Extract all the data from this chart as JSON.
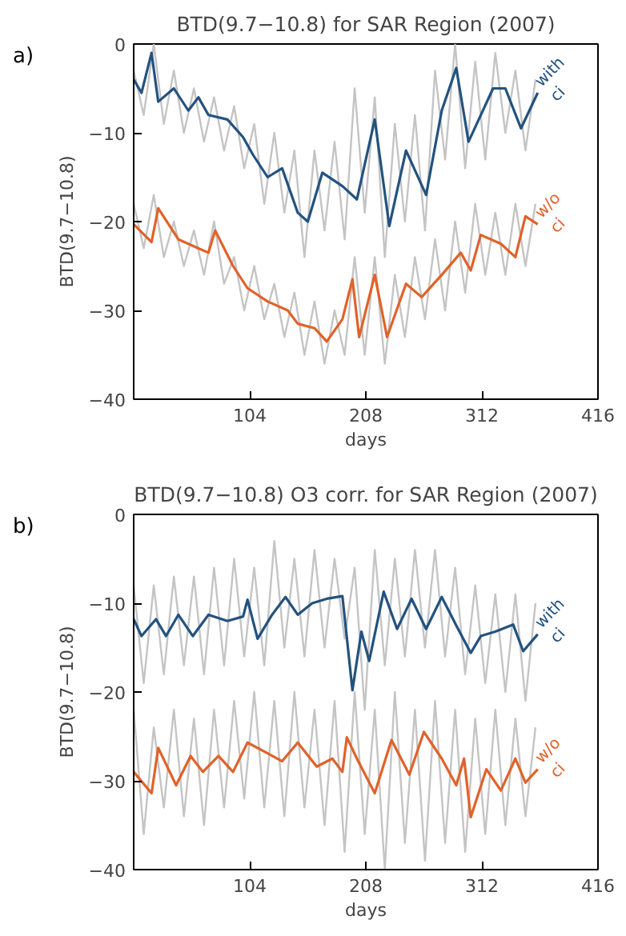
{
  "chart_data": [
    {
      "type": "line",
      "title": "BTD(9.7−10.8) for SAR Region (2007)",
      "xlabel": "days",
      "ylabel": "BTD(9.7−10.8)",
      "annotations": [
        "a)"
      ],
      "xlim": [
        0,
        416
      ],
      "xticks": [
        104,
        208,
        312,
        416
      ],
      "ylim": [
        -40,
        0
      ],
      "yticks": [
        -40,
        -30,
        -20,
        -10,
        0
      ],
      "series": [
        {
          "color": "#c4c4c4",
          "x": [
            0,
            9,
            18,
            27,
            36,
            45,
            54,
            63,
            72,
            81,
            90,
            99,
            108,
            117,
            126,
            135,
            144,
            153,
            162,
            171,
            180,
            189,
            198,
            207,
            216,
            225,
            234,
            243,
            252,
            261,
            270,
            279,
            288,
            297,
            306,
            315,
            324,
            333,
            342,
            351,
            360
          ],
          "values": [
            -3,
            -8,
            0,
            -9,
            -3,
            -10,
            -5,
            -11,
            -6,
            -12,
            -7,
            -14,
            -9,
            -18,
            -10,
            -19,
            -12,
            -24,
            -12,
            -21,
            -11,
            -22,
            -5,
            -19,
            -6,
            -24,
            -9,
            -20,
            -8,
            -21,
            -3,
            -13,
            0,
            -14,
            -2,
            -13,
            -1,
            -10,
            -3,
            -12,
            -4
          ]
        },
        {
          "color": "#c4c4c4",
          "x": [
            0,
            9,
            18,
            27,
            36,
            45,
            54,
            63,
            72,
            81,
            90,
            99,
            108,
            117,
            126,
            135,
            144,
            153,
            162,
            171,
            180,
            189,
            198,
            207,
            216,
            225,
            234,
            243,
            252,
            261,
            270,
            279,
            288,
            297,
            306,
            315,
            324,
            333,
            342,
            351,
            360
          ],
          "values": [
            -18,
            -23,
            -17,
            -24,
            -20,
            -25,
            -21,
            -26,
            -20,
            -27,
            -24,
            -30,
            -25,
            -31,
            -27,
            -33,
            -28,
            -35,
            -29,
            -36,
            -30,
            -35,
            -24,
            -35,
            -24,
            -36,
            -26,
            -33,
            -24,
            -31,
            -22,
            -30,
            -20,
            -28,
            -18,
            -26,
            -19,
            -26,
            -18,
            -25,
            -18
          ]
        },
        {
          "name": "with ci",
          "color": "#23527f",
          "x": [
            0,
            7,
            16,
            22,
            36,
            49,
            58,
            67,
            84,
            98,
            107,
            120,
            133,
            147,
            156,
            169,
            187,
            200,
            216,
            229,
            244,
            262,
            276,
            289,
            300,
            311,
            322,
            333,
            347,
            362
          ],
          "values": [
            -4,
            -5.5,
            -1,
            -6.5,
            -5,
            -7.5,
            -6,
            -8,
            -8.5,
            -10.5,
            -12.5,
            -15,
            -14,
            -19,
            -20,
            -14.5,
            -16,
            -17.5,
            -8.5,
            -20.5,
            -12,
            -17,
            -7.5,
            -2.7,
            -11,
            -8,
            -5,
            -5,
            -9.5,
            -5.5
          ]
        },
        {
          "name": "w/o ci",
          "color": "#e0622a",
          "x": [
            0,
            16,
            22,
            40,
            67,
            73,
            89,
            102,
            120,
            138,
            147,
            162,
            173,
            187,
            196,
            202,
            216,
            227,
            244,
            258,
            276,
            293,
            302,
            311,
            329,
            342,
            351,
            362
          ],
          "values": [
            -20.3,
            -22.3,
            -18.5,
            -22,
            -23.5,
            -21,
            -25,
            -27.5,
            -29,
            -30,
            -31.5,
            -32,
            -33.5,
            -31,
            -26.5,
            -33,
            -26,
            -33,
            -27,
            -28.5,
            -26,
            -23.5,
            -25.5,
            -21.5,
            -22.5,
            -24,
            -19.4,
            -20.3
          ]
        }
      ]
    },
    {
      "type": "line",
      "title": "BTD(9.7−10.8) O3 corr. for SAR Region (2007)",
      "xlabel": "days",
      "ylabel": "BTD(9.7−10.8)",
      "annotations": [
        "b)"
      ],
      "xlim": [
        0,
        416
      ],
      "xticks": [
        104,
        208,
        312,
        416
      ],
      "ylim": [
        -40,
        0
      ],
      "yticks": [
        -40,
        -30,
        -20,
        -10,
        0
      ],
      "series": [
        {
          "color": "#c4c4c4",
          "x": [
            0,
            9,
            18,
            27,
            36,
            45,
            54,
            63,
            72,
            81,
            90,
            99,
            108,
            117,
            126,
            135,
            144,
            153,
            162,
            171,
            180,
            189,
            198,
            207,
            216,
            225,
            234,
            243,
            252,
            261,
            270,
            279,
            288,
            297,
            306,
            315,
            324,
            333,
            342,
            351,
            360
          ],
          "values": [
            -8,
            -19,
            -8,
            -18,
            -7,
            -17,
            -7,
            -18,
            -6,
            -17,
            -5,
            -16,
            -6,
            -17,
            -3,
            -15,
            -5,
            -16,
            -4,
            -15,
            -5,
            -14,
            -6,
            -22,
            -4,
            -17,
            -5,
            -16,
            -4,
            -15,
            -4,
            -16,
            -6,
            -18,
            -8,
            -19,
            -9,
            -20,
            -9,
            -21,
            -10
          ]
        },
        {
          "color": "#c4c4c4",
          "x": [
            0,
            9,
            18,
            27,
            36,
            45,
            54,
            63,
            72,
            81,
            90,
            99,
            108,
            117,
            126,
            135,
            144,
            153,
            162,
            171,
            180,
            189,
            198,
            207,
            216,
            225,
            234,
            243,
            252,
            261,
            270,
            279,
            288,
            297,
            306,
            315,
            324,
            333,
            342,
            351,
            360
          ],
          "values": [
            -22,
            -36,
            -24,
            -33,
            -22,
            -34,
            -23,
            -35,
            -22,
            -33,
            -21,
            -32,
            -20,
            -33,
            -21,
            -34,
            -20,
            -33,
            -22,
            -35,
            -21,
            -38,
            -20,
            -36,
            -22,
            -40,
            -20,
            -37,
            -22,
            -39,
            -21,
            -37,
            -22,
            -38,
            -23,
            -36,
            -22,
            -35,
            -23,
            -34,
            -24
          ]
        },
        {
          "name": "with ci",
          "color": "#23527f",
          "x": [
            0,
            7,
            20,
            29,
            40,
            53,
            67,
            84,
            98,
            102,
            111,
            124,
            136,
            147,
            160,
            173,
            187,
            196,
            204,
            211,
            224,
            236,
            249,
            262,
            276,
            289,
            302,
            311,
            324,
            340,
            349,
            362
          ],
          "values": [
            -11.8,
            -13.7,
            -11.8,
            -13.7,
            -11.3,
            -13.7,
            -11.3,
            -12,
            -11.5,
            -9.6,
            -14,
            -11.3,
            -9.3,
            -11.3,
            -10,
            -9.5,
            -9.2,
            -19.8,
            -13.2,
            -16.5,
            -8.7,
            -12.9,
            -9.5,
            -12.9,
            -9.3,
            -12.5,
            -15.6,
            -13.7,
            -13.2,
            -12.4,
            -15.4,
            -13.5
          ]
        },
        {
          "name": "w/o ci",
          "color": "#e0622a",
          "x": [
            0,
            16,
            22,
            38,
            51,
            62,
            76,
            89,
            102,
            120,
            133,
            147,
            164,
            178,
            187,
            191,
            200,
            216,
            231,
            247,
            260,
            276,
            289,
            296,
            302,
            316,
            329,
            342,
            351,
            362
          ],
          "values": [
            -29,
            -31.4,
            -26.3,
            -30.5,
            -27.2,
            -29,
            -27.2,
            -29,
            -25.7,
            -26.9,
            -27.8,
            -25.7,
            -28.4,
            -27.5,
            -29,
            -25.1,
            -27.5,
            -31.4,
            -25.4,
            -29.3,
            -24.5,
            -27.5,
            -30.5,
            -27.5,
            -34.1,
            -28.7,
            -31.1,
            -27.5,
            -30.2,
            -28.7
          ]
        }
      ]
    }
  ]
}
